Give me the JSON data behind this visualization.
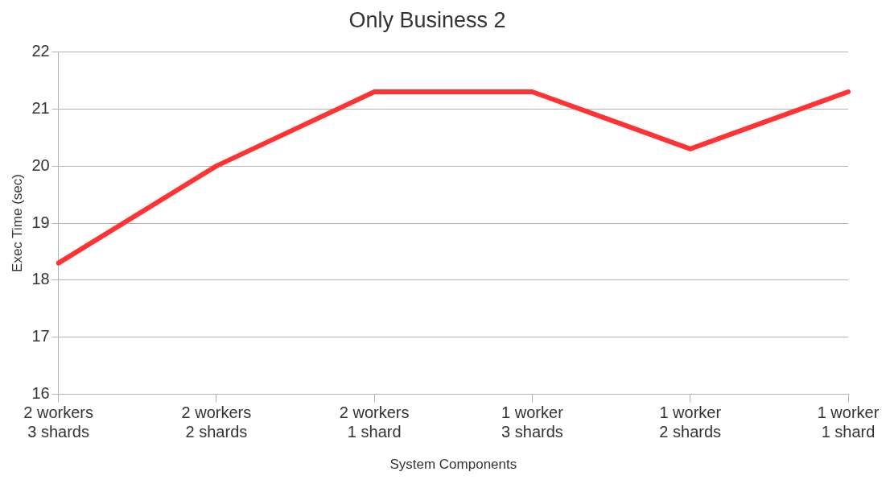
{
  "chart_data": {
    "type": "line",
    "title": "Only Business 2",
    "xlabel": "System Components",
    "ylabel": "Exec Time (sec)",
    "categories": [
      "2 workers\n3 shards",
      "2 workers\n2 shards",
      "2 workers\n1 shard",
      "1 worker\n3 shards",
      "1 worker\n2 shards",
      "1 worker\n1 shard"
    ],
    "series": [
      {
        "color": "#ff3333",
        "values": [
          18.3,
          20,
          21.3,
          21.3,
          20.3,
          21.3
        ]
      }
    ],
    "ylim": [
      16,
      22
    ],
    "yticks": [
      16,
      17,
      18,
      19,
      20,
      21,
      22
    ],
    "grid": "y",
    "legend": false,
    "marker": "none",
    "line_style": "solid"
  }
}
